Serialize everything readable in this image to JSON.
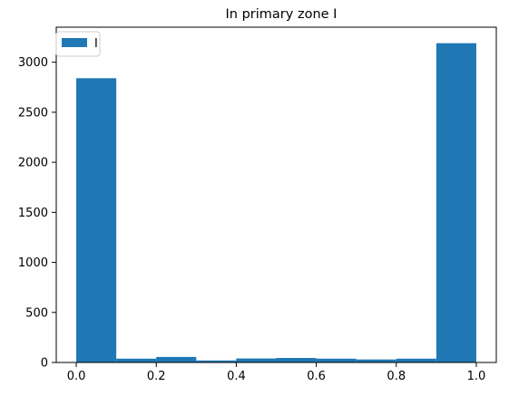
{
  "chart_data": {
    "type": "bar",
    "title": "In primary zone I",
    "xlabel": "",
    "ylabel": "",
    "bin_edges": [
      0.0,
      0.1,
      0.2,
      0.3,
      0.4,
      0.5,
      0.6,
      0.7,
      0.8,
      0.9,
      1.0
    ],
    "series": [
      {
        "name": "I",
        "color": "#1f77b4",
        "values": [
          2840,
          38,
          55,
          20,
          40,
          45,
          38,
          30,
          38,
          3190
        ]
      }
    ],
    "xlim": [
      -0.05,
      1.05
    ],
    "ylim": [
      0,
      3350
    ],
    "x_ticks": [
      0.0,
      0.2,
      0.4,
      0.6,
      0.8,
      1.0
    ],
    "x_tick_labels": [
      "0.0",
      "0.2",
      "0.4",
      "0.6",
      "0.8",
      "1.0"
    ],
    "y_ticks": [
      0,
      500,
      1000,
      1500,
      2000,
      2500,
      3000
    ],
    "y_tick_labels": [
      "0",
      "500",
      "1000",
      "1500",
      "2000",
      "2500",
      "3000"
    ],
    "grid": false,
    "legend_position": "top-left"
  }
}
